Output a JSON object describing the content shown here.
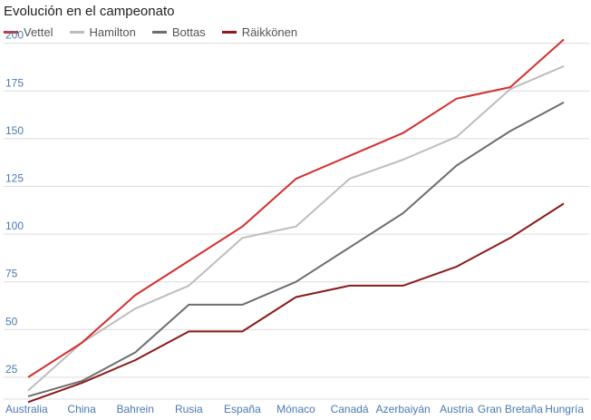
{
  "chart_data": {
    "type": "line",
    "title": "Evolución en el campeonato",
    "xlabel": "",
    "ylabel": "",
    "categories": [
      "Australia",
      "China",
      "Bahrein",
      "Rusia",
      "España",
      "Mónaco",
      "Canadá",
      "Azerbaiyán",
      "Austria",
      "Gran Bretaña",
      "Hungría"
    ],
    "yticks": [
      25,
      50,
      75,
      100,
      125,
      150,
      175,
      200
    ],
    "ylim": [
      0,
      215
    ],
    "grid": true,
    "legend_position": "top-left",
    "series": [
      {
        "name": "Vettel",
        "color": "#d32f2f",
        "values": [
          25,
          43,
          68,
          86,
          104,
          129,
          141,
          153,
          171,
          177,
          202
        ]
      },
      {
        "name": "Hamilton",
        "color": "#bdbdbd",
        "values": [
          18,
          43,
          61,
          73,
          98,
          104,
          129,
          139,
          151,
          176,
          188
        ]
      },
      {
        "name": "Bottas",
        "color": "#6d6d6d",
        "values": [
          15,
          23,
          38,
          63,
          63,
          75,
          93,
          111,
          136,
          154,
          169
        ]
      },
      {
        "name": "Räikkönen",
        "color": "#8b1a1a",
        "values": [
          12,
          22,
          34,
          49,
          49,
          67,
          73,
          73,
          83,
          98,
          116
        ]
      }
    ]
  }
}
